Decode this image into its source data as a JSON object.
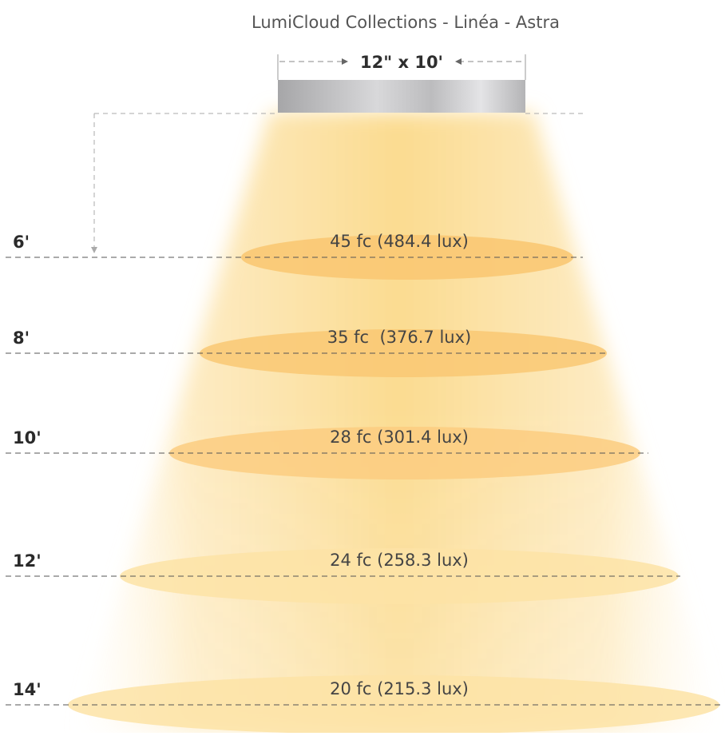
{
  "title": "LumiCloud Collections - Linéa - Astra",
  "fixture": {
    "dimension_label": "12\" x 10'"
  },
  "colors": {
    "beam_core": "#fbd98a",
    "beam_edge": "#fff3d2",
    "ellipse_near": "#f9c873",
    "ellipse_far": "#fde6ad",
    "fixture_dark": "#a8a8aa",
    "fixture_light": "#e2e2e4",
    "dash": "#777777",
    "text": "#3a3a3a"
  },
  "levels": [
    {
      "height": "6'",
      "reading": "45 fc (484.4 lux)"
    },
    {
      "height": "8'",
      "reading": "35 fc  (376.7 lux)"
    },
    {
      "height": "10'",
      "reading": "28 fc (301.4 lux)"
    },
    {
      "height": "12'",
      "reading": "24 fc (258.3 lux)"
    },
    {
      "height": "14'",
      "reading": "20 fc (215.3 lux)"
    }
  ]
}
